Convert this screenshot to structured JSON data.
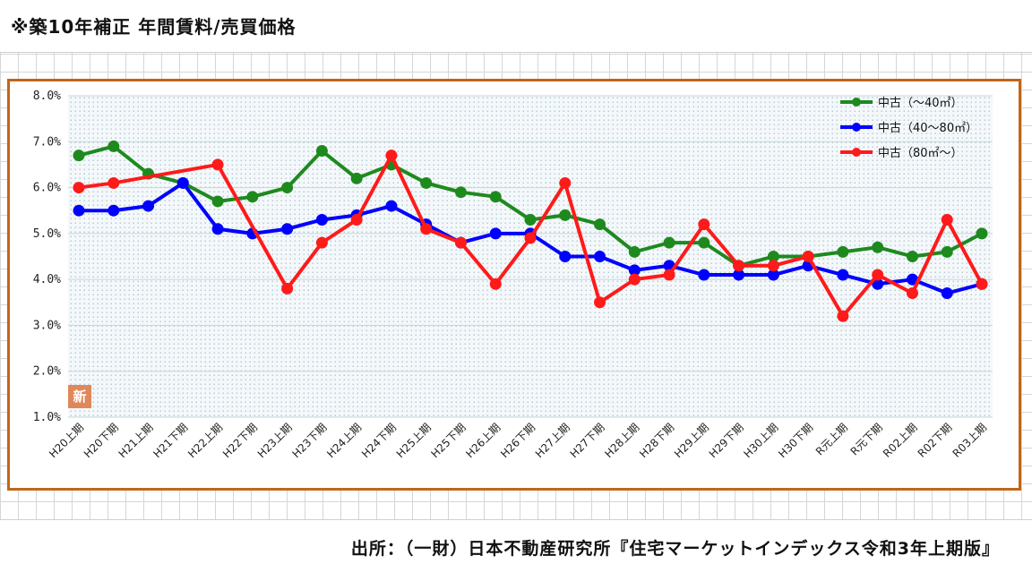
{
  "header": {
    "title": "※築10年補正 年間賃料/売買価格"
  },
  "footer": {
    "source": "出所：（一財）日本不動産研究所『住宅マーケットインデックス令和3年上期版』"
  },
  "badge": {
    "label": "新"
  },
  "colors": {
    "frame": "#c0661a",
    "series": [
      "#1e8a1e",
      "#0000ff",
      "#ff1a1a"
    ]
  },
  "chart_data": {
    "type": "line",
    "title": "",
    "xlabel": "",
    "ylabel": "",
    "ylim": [
      1.0,
      8.0
    ],
    "yticks": [
      "1.0%",
      "2.0%",
      "3.0%",
      "4.0%",
      "5.0%",
      "6.0%",
      "7.0%",
      "8.0%"
    ],
    "grid": true,
    "legend": "top-right",
    "categories": [
      "H20上期",
      "H20下期",
      "H21上期",
      "H21下期",
      "H22上期",
      "H22下期",
      "H23上期",
      "H23下期",
      "H24上期",
      "H24下期",
      "H25上期",
      "H25下期",
      "H26上期",
      "H26下期",
      "H27上期",
      "H27下期",
      "H28上期",
      "H28下期",
      "H29上期",
      "H29下期",
      "H30上期",
      "H30下期",
      "R元上期",
      "R元下期",
      "R02上期",
      "R02下期",
      "R03上期"
    ],
    "series": [
      {
        "name": "中古（～40㎡）",
        "color": "#1e8a1e",
        "values": [
          6.7,
          6.9,
          6.3,
          6.1,
          5.7,
          5.8,
          6.0,
          6.8,
          6.2,
          6.5,
          6.1,
          5.9,
          5.8,
          5.3,
          5.4,
          5.2,
          4.6,
          4.8,
          4.8,
          4.3,
          4.5,
          4.5,
          4.6,
          4.7,
          4.5,
          4.6,
          5.0
        ]
      },
      {
        "name": "中古（40～80㎡）",
        "color": "#0000ff",
        "values": [
          5.5,
          5.5,
          5.6,
          6.1,
          5.1,
          5.0,
          5.1,
          5.3,
          5.4,
          5.6,
          5.2,
          4.8,
          5.0,
          5.0,
          4.5,
          4.5,
          4.2,
          4.3,
          4.1,
          4.1,
          4.1,
          4.3,
          4.1,
          3.9,
          4.0,
          3.7,
          3.9
        ]
      },
      {
        "name": "中古（80㎡～）",
        "color": "#ff1a1a",
        "values": [
          6.0,
          6.1,
          null,
          null,
          6.5,
          null,
          3.8,
          4.8,
          5.3,
          6.7,
          5.1,
          4.8,
          3.9,
          4.9,
          6.1,
          3.5,
          4.0,
          4.1,
          5.2,
          4.3,
          4.3,
          4.5,
          3.2,
          4.1,
          3.7,
          5.3,
          3.9
        ]
      }
    ]
  }
}
